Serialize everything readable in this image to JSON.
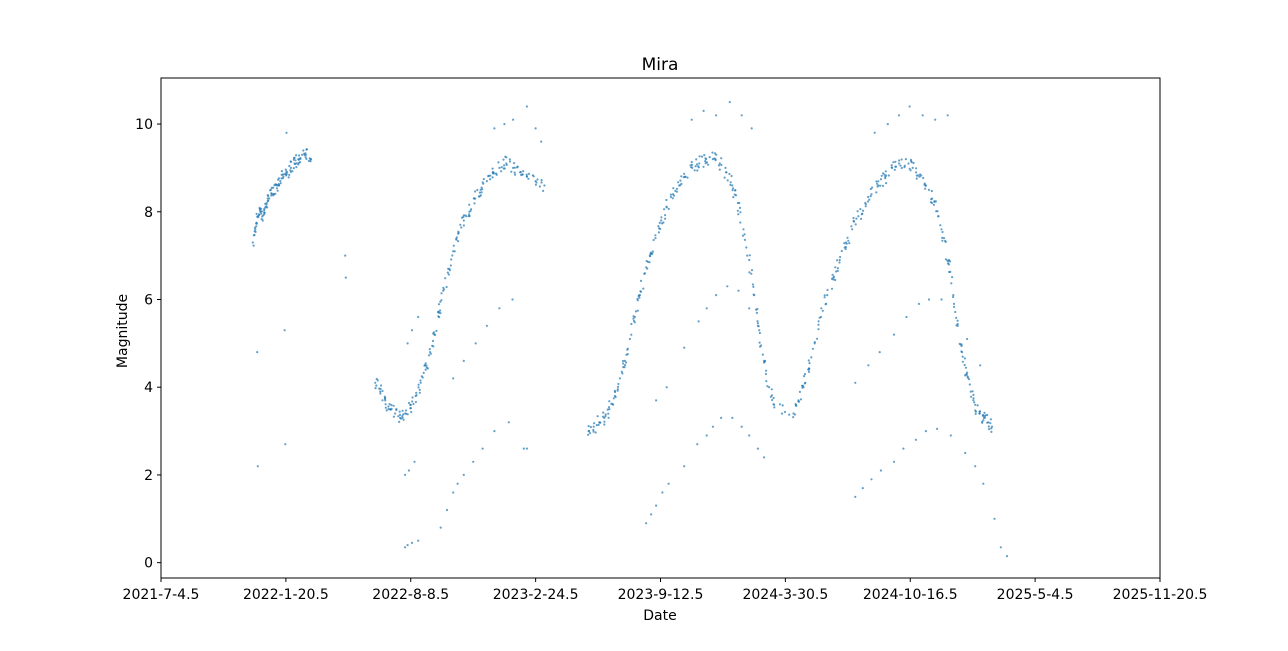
{
  "chart_data": {
    "type": "scatter",
    "title": "Mira",
    "xlabel": "Date",
    "ylabel": "Magnitude",
    "xlim": [
      "2021-7-4.5",
      "2025-11-20.5"
    ],
    "ylim": [
      -0.35,
      11.05
    ],
    "x_ticks": [
      "2021-7-4.5",
      "2022-1-20.5",
      "2022-8-8.5",
      "2023-2-24.5",
      "2023-9-12.5",
      "2024-3-30.5",
      "2024-10-16.5",
      "2025-5-4.5",
      "2025-11-20.5"
    ],
    "y_ticks": [
      0,
      2,
      4,
      6,
      8,
      10
    ],
    "grid": false,
    "marker_color": "#1f77b4",
    "series": [
      {
        "name": "main",
        "points": [
          [
            "2021-11-28",
            7.3
          ],
          [
            "2021-12-2",
            7.6
          ],
          [
            "2021-12-6",
            7.9
          ],
          [
            "2021-12-10",
            8.0
          ],
          [
            "2021-12-14",
            7.8
          ],
          [
            "2021-12-18",
            8.1
          ],
          [
            "2021-12-22",
            8.3
          ],
          [
            "2021-12-27",
            8.5
          ],
          [
            "2022-1-1",
            8.4
          ],
          [
            "2022-1-6",
            8.6
          ],
          [
            "2022-1-11",
            8.7
          ],
          [
            "2022-1-16",
            8.8
          ],
          [
            "2022-1-22",
            8.9
          ],
          [
            "2022-1-28",
            9.0
          ],
          [
            "2022-2-3",
            9.1
          ],
          [
            "2022-2-9",
            9.2
          ],
          [
            "2022-2-15",
            9.3
          ],
          [
            "2022-2-21",
            9.3
          ],
          [
            "2022-3-1",
            9.2
          ],
          [
            "2022-6-12",
            4.1
          ],
          [
            "2022-6-20",
            3.9
          ],
          [
            "2022-6-28",
            3.7
          ],
          [
            "2022-7-6",
            3.5
          ],
          [
            "2022-7-14",
            3.4
          ],
          [
            "2022-7-22",
            3.3
          ],
          [
            "2022-7-30",
            3.4
          ],
          [
            "2022-8-8",
            3.6
          ],
          [
            "2022-8-16",
            3.8
          ],
          [
            "2022-8-24",
            4.1
          ],
          [
            "2022-9-1",
            4.4
          ],
          [
            "2022-9-8",
            4.8
          ],
          [
            "2022-9-15",
            5.2
          ],
          [
            "2022-9-22",
            5.7
          ],
          [
            "2022-9-29",
            6.2
          ],
          [
            "2022-10-7",
            6.7
          ],
          [
            "2022-10-15",
            7.1
          ],
          [
            "2022-10-23",
            7.5
          ],
          [
            "2022-11-1",
            7.8
          ],
          [
            "2022-11-10",
            8.0
          ],
          [
            "2022-11-19",
            8.3
          ],
          [
            "2022-11-28",
            8.5
          ],
          [
            "2022-12-8",
            8.7
          ],
          [
            "2022-12-18",
            8.9
          ],
          [
            "2022-12-28",
            9.0
          ],
          [
            "2023-1-8",
            9.1
          ],
          [
            "2023-1-19",
            9.0
          ],
          [
            "2023-1-30",
            8.9
          ],
          [
            "2023-2-10",
            8.8
          ],
          [
            "2023-2-24",
            8.7
          ],
          [
            "2023-3-10",
            8.6
          ],
          [
            "2023-5-20",
            3.0
          ],
          [
            "2023-5-28",
            3.1
          ],
          [
            "2023-6-6",
            3.2
          ],
          [
            "2023-6-14",
            3.3
          ],
          [
            "2023-6-22",
            3.5
          ],
          [
            "2023-7-1",
            3.8
          ],
          [
            "2023-7-9",
            4.2
          ],
          [
            "2023-7-17",
            4.6
          ],
          [
            "2023-7-25",
            5.1
          ],
          [
            "2023-8-2",
            5.6
          ],
          [
            "2023-8-10",
            6.1
          ],
          [
            "2023-8-18",
            6.6
          ],
          [
            "2023-8-26",
            7.0
          ],
          [
            "2023-9-4",
            7.4
          ],
          [
            "2023-9-13",
            7.8
          ],
          [
            "2023-9-22",
            8.1
          ],
          [
            "2023-10-2",
            8.4
          ],
          [
            "2023-10-12",
            8.6
          ],
          [
            "2023-10-22",
            8.8
          ],
          [
            "2023-11-2",
            9.0
          ],
          [
            "2023-11-13",
            9.1
          ],
          [
            "2023-11-24",
            9.2
          ],
          [
            "2023-12-5",
            9.2
          ],
          [
            "2023-12-16",
            9.1
          ],
          [
            "2023-12-26",
            8.9
          ],
          [
            "2024-1-5",
            8.6
          ],
          [
            "2024-1-14",
            8.2
          ],
          [
            "2024-1-23",
            7.6
          ],
          [
            "2024-2-1",
            6.9
          ],
          [
            "2024-2-9",
            6.1
          ],
          [
            "2024-2-17",
            5.3
          ],
          [
            "2024-2-25",
            4.6
          ],
          [
            "2024-3-4",
            4.0
          ],
          [
            "2024-3-12",
            3.6
          ],
          [
            "2024-4-12",
            3.4
          ],
          [
            "2024-4-20",
            3.7
          ],
          [
            "2024-4-28",
            4.0
          ],
          [
            "2024-5-6",
            4.4
          ],
          [
            "2024-5-16",
            5.0
          ],
          [
            "2024-5-26",
            5.6
          ],
          [
            "2024-6-5",
            6.1
          ],
          [
            "2024-6-15",
            6.5
          ],
          [
            "2024-6-25",
            6.9
          ],
          [
            "2024-7-5",
            7.3
          ],
          [
            "2024-7-15",
            7.6
          ],
          [
            "2024-7-25",
            7.9
          ],
          [
            "2024-8-5",
            8.2
          ],
          [
            "2024-8-15",
            8.4
          ],
          [
            "2024-8-26",
            8.6
          ],
          [
            "2024-9-6",
            8.8
          ],
          [
            "2024-9-17",
            9.0
          ],
          [
            "2024-9-28",
            9.1
          ],
          [
            "2024-10-9",
            9.2
          ],
          [
            "2024-10-20",
            9.0
          ],
          [
            "2024-10-31",
            8.8
          ],
          [
            "2024-11-10",
            8.6
          ],
          [
            "2024-11-20",
            8.3
          ],
          [
            "2024-11-30",
            7.9
          ],
          [
            "2024-12-9",
            7.4
          ],
          [
            "2024-12-17",
            6.8
          ],
          [
            "2024-12-24",
            6.1
          ],
          [
            "2024-12-31",
            5.4
          ],
          [
            "2025-1-7",
            4.8
          ],
          [
            "2025-1-14",
            4.3
          ],
          [
            "2025-1-21",
            3.9
          ],
          [
            "2025-1-28",
            3.6
          ],
          [
            "2025-2-4",
            3.4
          ],
          [
            "2025-2-11",
            3.3
          ],
          [
            "2025-2-18",
            3.2
          ],
          [
            "2025-2-24",
            3.1
          ]
        ]
      },
      {
        "name": "outliers",
        "points": [
          [
            "2021-12-5",
            4.8
          ],
          [
            "2021-12-6",
            2.2
          ],
          [
            "2022-1-18",
            5.3
          ],
          [
            "2022-1-19",
            2.7
          ],
          [
            "2022-1-21",
            9.8
          ],
          [
            "2022-4-25",
            7.0
          ],
          [
            "2022-4-26",
            6.5
          ],
          [
            "2022-7-30",
            0.35
          ],
          [
            "2022-8-3",
            0.4
          ],
          [
            "2022-8-10",
            0.45
          ],
          [
            "2022-8-20",
            0.5
          ],
          [
            "2022-7-30",
            2.0
          ],
          [
            "2022-8-5",
            2.1
          ],
          [
            "2022-8-14",
            2.3
          ],
          [
            "2022-8-3",
            5.0
          ],
          [
            "2022-8-10",
            5.3
          ],
          [
            "2022-8-20",
            5.6
          ],
          [
            "2022-9-25",
            0.8
          ],
          [
            "2022-10-5",
            1.2
          ],
          [
            "2022-10-15",
            1.6
          ],
          [
            "2022-10-22",
            1.8
          ],
          [
            "2022-11-1",
            2.0
          ],
          [
            "2022-11-16",
            2.3
          ],
          [
            "2022-12-1",
            2.6
          ],
          [
            "2022-12-20",
            3.0
          ],
          [
            "2023-1-12",
            3.2
          ],
          [
            "2022-10-15",
            4.2
          ],
          [
            "2022-11-1",
            4.6
          ],
          [
            "2022-11-20",
            5.0
          ],
          [
            "2022-12-8",
            5.4
          ],
          [
            "2022-12-28",
            5.8
          ],
          [
            "2023-1-18",
            6.0
          ],
          [
            "2022-12-20",
            9.9
          ],
          [
            "2023-1-5",
            10.0
          ],
          [
            "2023-1-19",
            10.1
          ],
          [
            "2023-2-10",
            10.4
          ],
          [
            "2023-2-24",
            9.9
          ],
          [
            "2023-3-5",
            9.6
          ],
          [
            "2023-2-5",
            2.6
          ],
          [
            "2023-2-10",
            2.6
          ],
          [
            "2023-8-20",
            0.9
          ],
          [
            "2023-8-28",
            1.1
          ],
          [
            "2023-9-5",
            1.3
          ],
          [
            "2023-9-15",
            1.6
          ],
          [
            "2023-9-25",
            1.8
          ],
          [
            "2023-10-20",
            2.2
          ],
          [
            "2023-11-10",
            2.7
          ],
          [
            "2023-11-25",
            2.9
          ],
          [
            "2023-12-5",
            3.1
          ],
          [
            "2023-12-18",
            3.3
          ],
          [
            "2024-1-5",
            3.3
          ],
          [
            "2024-1-20",
            3.1
          ],
          [
            "2024-2-1",
            2.9
          ],
          [
            "2024-2-15",
            2.6
          ],
          [
            "2024-2-25",
            2.4
          ],
          [
            "2023-9-5",
            3.7
          ],
          [
            "2023-9-22",
            4.0
          ],
          [
            "2023-10-20",
            4.9
          ],
          [
            "2023-11-12",
            5.5
          ],
          [
            "2023-11-25",
            5.8
          ],
          [
            "2023-12-10",
            6.1
          ],
          [
            "2023-12-28",
            6.3
          ],
          [
            "2024-1-15",
            6.2
          ],
          [
            "2024-2-1",
            5.8
          ],
          [
            "2024-2-15",
            5.4
          ],
          [
            "2023-11-1",
            10.1
          ],
          [
            "2023-11-20",
            10.3
          ],
          [
            "2023-12-10",
            10.2
          ],
          [
            "2024-1-1",
            10.5
          ],
          [
            "2024-1-20",
            10.2
          ],
          [
            "2024-2-5",
            9.9
          ],
          [
            "2024-7-20",
            1.5
          ],
          [
            "2024-8-1",
            1.7
          ],
          [
            "2024-8-15",
            1.9
          ],
          [
            "2024-8-30",
            2.1
          ],
          [
            "2024-9-20",
            2.3
          ],
          [
            "2024-10-5",
            2.6
          ],
          [
            "2024-10-25",
            2.8
          ],
          [
            "2024-11-10",
            3.0
          ],
          [
            "2024-11-28",
            3.05
          ],
          [
            "2024-12-20",
            2.9
          ],
          [
            "2025-1-12",
            2.5
          ],
          [
            "2025-1-28",
            2.2
          ],
          [
            "2025-2-10",
            1.8
          ],
          [
            "2025-2-28",
            1.0
          ],
          [
            "2025-3-10",
            0.35
          ],
          [
            "2025-3-20",
            0.15
          ],
          [
            "2024-7-20",
            4.1
          ],
          [
            "2024-8-10",
            4.5
          ],
          [
            "2024-8-28",
            4.8
          ],
          [
            "2024-9-20",
            5.2
          ],
          [
            "2024-10-10",
            5.6
          ],
          [
            "2024-10-30",
            5.9
          ],
          [
            "2024-11-15",
            6.0
          ],
          [
            "2024-12-5",
            6.0
          ],
          [
            "2024-12-25",
            5.9
          ],
          [
            "2025-1-15",
            5.1
          ],
          [
            "2025-2-5",
            4.5
          ],
          [
            "2024-8-20",
            9.8
          ],
          [
            "2024-9-10",
            10.0
          ],
          [
            "2024-9-28",
            10.2
          ],
          [
            "2024-10-15",
            10.4
          ],
          [
            "2024-11-5",
            10.2
          ],
          [
            "2024-11-25",
            10.1
          ],
          [
            "2024-12-15",
            10.2
          ]
        ]
      }
    ]
  }
}
